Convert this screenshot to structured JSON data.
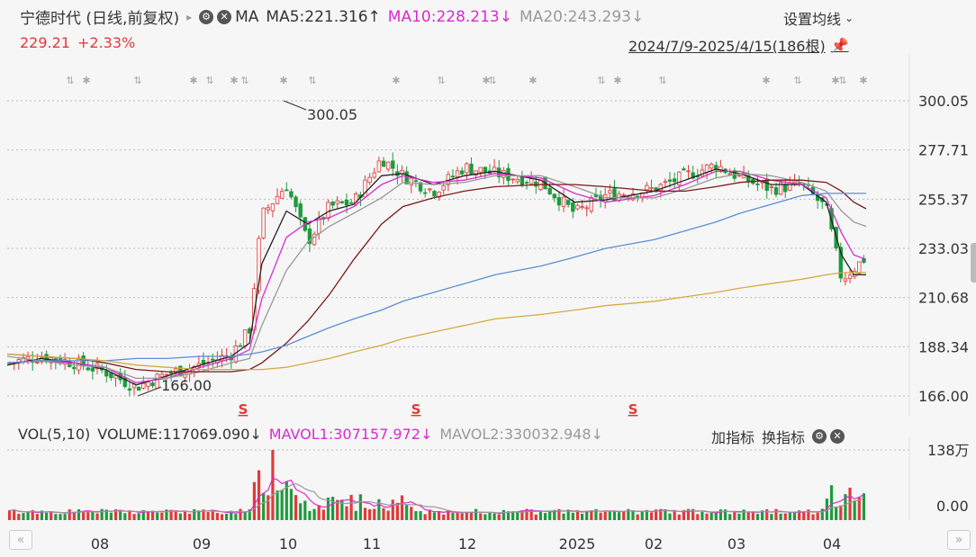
{
  "header": {
    "stock_title": "宁德时代 (日线,前复权)",
    "title_arrow": "▸",
    "indicator": "MA",
    "ma5": "MA5:221.316",
    "ma5_arrow": "↑",
    "ma10": "MA10:228.213",
    "ma10_arrow": "↓",
    "ma20": "MA20:243.293",
    "ma20_arrow": "↓",
    "settings": "设置均线",
    "settings_arrow": "⌄",
    "price": "229.21",
    "change": "+2.33%",
    "range": "2024/7/9-2025/4/15(186根)"
  },
  "volume_header": {
    "name": "VOL(5,10)",
    "volume": "VOLUME:117069.090",
    "volume_arrow": "↓",
    "mavol1": "MAVOL1:307157.972",
    "mavol1_arrow": "↓",
    "mavol2": "MAVOL2:330032.948",
    "mavol2_arrow": "↓",
    "add_indicator": "加指标",
    "swap_indicator": "换指标"
  },
  "colors": {
    "up": "#e03a3a",
    "down": "#1e9a3e",
    "ma5": "#222222",
    "ma10": "#d92bd0",
    "ma20": "#999999",
    "ma60": "#7b1a1a",
    "ma120": "#5b8fd6",
    "ma250": "#d4aa40"
  },
  "chart_data": {
    "type": "candlestick",
    "y_ticks": [
      "300.05",
      "277.71",
      "255.37",
      "233.03",
      "210.68",
      "188.34",
      "166.00"
    ],
    "ylim": [
      166.0,
      300.05
    ],
    "x_ticks": [
      "08",
      "09",
      "10",
      "11",
      "12",
      "2025",
      "02",
      "03",
      "04"
    ],
    "annotations": [
      {
        "text": "300.05",
        "value": 300.05
      },
      {
        "text": "166.00",
        "value": 166.0
      }
    ],
    "signal_marker": "S",
    "volume_ticks": [
      "138万",
      "0.00"
    ],
    "volume_ylim": [
      0,
      1380000
    ],
    "closes": [
      {
        "date": "2024-07-09",
        "value": 181
      },
      {
        "date": "2024-07-20",
        "value": 184
      },
      {
        "date": "2024-07-31",
        "value": 181
      },
      {
        "date": "2024-08-10",
        "value": 177
      },
      {
        "date": "2024-08-20",
        "value": 170
      },
      {
        "date": "2024-08-30",
        "value": 176
      },
      {
        "date": "2024-09-10",
        "value": 180
      },
      {
        "date": "2024-09-20",
        "value": 185
      },
      {
        "date": "2024-09-26",
        "value": 196
      },
      {
        "date": "2024-09-30",
        "value": 248
      },
      {
        "date": "2024-10-08",
        "value": 262
      },
      {
        "date": "2024-10-15",
        "value": 236
      },
      {
        "date": "2024-10-22",
        "value": 252
      },
      {
        "date": "2024-10-30",
        "value": 254
      },
      {
        "date": "2024-11-08",
        "value": 274
      },
      {
        "date": "2024-11-15",
        "value": 266
      },
      {
        "date": "2024-11-25",
        "value": 259
      },
      {
        "date": "2024-12-05",
        "value": 270
      },
      {
        "date": "2024-12-15",
        "value": 267
      },
      {
        "date": "2024-12-30",
        "value": 263
      },
      {
        "date": "2025-01-10",
        "value": 249
      },
      {
        "date": "2025-01-20",
        "value": 257
      },
      {
        "date": "2025-02-05",
        "value": 260
      },
      {
        "date": "2025-02-15",
        "value": 266
      },
      {
        "date": "2025-02-25",
        "value": 271
      },
      {
        "date": "2025-03-05",
        "value": 265
      },
      {
        "date": "2025-03-15",
        "value": 260
      },
      {
        "date": "2025-03-25",
        "value": 262
      },
      {
        "date": "2025-04-02",
        "value": 251
      },
      {
        "date": "2025-04-07",
        "value": 219
      },
      {
        "date": "2025-04-11",
        "value": 224
      },
      {
        "date": "2025-04-15",
        "value": 229
      }
    ],
    "ma_lines": [
      {
        "name": "MA5",
        "values": [
          180,
          183,
          181,
          178,
          171,
          175,
          180,
          184,
          190,
          226,
          250,
          244,
          250,
          253,
          266,
          267,
          262,
          266,
          268,
          264,
          254,
          255,
          259,
          264,
          269,
          267,
          262,
          262,
          254,
          230,
          221,
          221
        ]
      },
      {
        "name": "MA10",
        "values": [
          181,
          182,
          181,
          179,
          172,
          174,
          179,
          183,
          187,
          210,
          238,
          245,
          247,
          252,
          262,
          266,
          263,
          264,
          267,
          265,
          258,
          254,
          257,
          262,
          268,
          268,
          264,
          262,
          256,
          240,
          230,
          228
        ]
      },
      {
        "name": "MA20",
        "values": [
          184,
          182,
          180,
          179,
          174,
          174,
          177,
          181,
          183,
          198,
          223,
          236,
          243,
          249,
          256,
          263,
          262,
          263,
          266,
          266,
          261,
          256,
          256,
          260,
          265,
          267,
          266,
          263,
          259,
          250,
          245,
          243
        ]
      },
      {
        "name": "MA60",
        "values": [
          185,
          184,
          183,
          181,
          178,
          177,
          177,
          177,
          178,
          181,
          190,
          200,
          212,
          228,
          244,
          252,
          256,
          259,
          261,
          262,
          262,
          261,
          259,
          259,
          261,
          263,
          264,
          264,
          263,
          259,
          254,
          251
        ]
      },
      {
        "name": "MA120",
        "values": [
          181,
          182,
          182,
          182,
          183,
          183,
          184,
          184,
          185,
          186,
          189,
          193,
          197,
          201,
          205,
          209,
          213,
          217,
          221,
          225,
          229,
          233,
          237,
          241,
          245,
          249,
          253,
          257,
          258,
          258,
          258,
          258
        ]
      },
      {
        "name": "MA250",
        "values": [
          185,
          184,
          183,
          182,
          180,
          179,
          178,
          178,
          178,
          178,
          179,
          181,
          183,
          186,
          189,
          192,
          195,
          198,
          201,
          203,
          205,
          207,
          209,
          211,
          213,
          215,
          217,
          219,
          221,
          222,
          222,
          222
        ]
      }
    ]
  }
}
